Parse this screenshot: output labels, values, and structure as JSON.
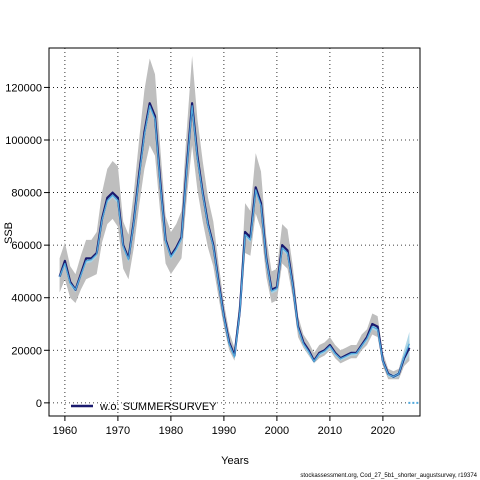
{
  "chart_data": {
    "type": "line",
    "xlabel": "Years",
    "ylabel": "SSB",
    "xlim": [
      1957,
      2027
    ],
    "ylim": [
      -5000,
      135000
    ],
    "x_ticks": [
      1960,
      1970,
      1980,
      1990,
      2000,
      2010,
      2020
    ],
    "y_ticks": [
      0,
      20000,
      40000,
      60000,
      80000,
      100000,
      120000
    ],
    "grid": "dotted",
    "legend_position": "bottom-left",
    "legend": [
      {
        "label": "w.o. SUMMERSURVEY",
        "color": "#1a1a6e"
      }
    ],
    "footer": "stockassessment.org, Cod_27_5b1_shorter_augustsurvey, r19374",
    "colors": {
      "band_gray": "#bebebe",
      "band_lightblue": "#a8d4e6",
      "line_dark": "#1a1a6e",
      "line_light": "#4fa8dc"
    },
    "series": [
      {
        "name": "w.o. SUMMERSURVEY",
        "x": [
          1959,
          1960,
          1961,
          1962,
          1963,
          1964,
          1965,
          1966,
          1967,
          1968,
          1969,
          1970,
          1971,
          1972,
          1973,
          1974,
          1975,
          1976,
          1977,
          1978,
          1979,
          1980,
          1981,
          1982,
          1983,
          1984,
          1985,
          1986,
          1987,
          1988,
          1989,
          1990,
          1991,
          1992,
          1993,
          1994,
          1995,
          1996,
          1997,
          1998,
          1999,
          2000,
          2001,
          2002,
          2003,
          2004,
          2005,
          2006,
          2007,
          2008,
          2009,
          2010,
          2011,
          2012,
          2013,
          2014,
          2015,
          2016,
          2017,
          2018,
          2019,
          2020,
          2021,
          2022,
          2023,
          2024,
          2025
        ],
        "values": [
          48000,
          54000,
          46000,
          43000,
          49000,
          55000,
          55000,
          57000,
          70000,
          78000,
          80000,
          78000,
          60000,
          55000,
          69000,
          87000,
          103000,
          114000,
          109000,
          84000,
          62000,
          56000,
          59000,
          63000,
          90000,
          114000,
          94000,
          80000,
          68000,
          60000,
          46000,
          33000,
          23000,
          18000,
          35000,
          65000,
          63000,
          82000,
          76000,
          55000,
          43000,
          44000,
          60000,
          58000,
          45000,
          29000,
          23000,
          20000,
          16000,
          19000,
          20000,
          22000,
          19000,
          17000,
          18000,
          19000,
          19000,
          22000,
          25000,
          30000,
          29000,
          16000,
          11000,
          10000,
          11000,
          17000,
          21000
        ],
        "lower": [
          42000,
          47000,
          40000,
          38000,
          43000,
          47000,
          48000,
          49000,
          61000,
          68000,
          70000,
          67000,
          51000,
          47000,
          59000,
          75000,
          89000,
          98000,
          94000,
          72000,
          53000,
          49000,
          52000,
          55000,
          78000,
          98000,
          81000,
          69000,
          59000,
          52000,
          40000,
          29000,
          20000,
          16000,
          31000,
          57000,
          56000,
          72000,
          66000,
          48000,
          38000,
          39000,
          53000,
          51000,
          40000,
          25000,
          21000,
          18000,
          15000,
          17000,
          18000,
          20000,
          17000,
          15000,
          16000,
          17000,
          17000,
          20000,
          22000,
          26000,
          25000,
          14000,
          9000,
          9000,
          9000,
          14000,
          16000
        ],
        "upper": [
          55000,
          61000,
          52000,
          49000,
          56000,
          62000,
          62000,
          65000,
          80000,
          89000,
          92000,
          90000,
          69000,
          64000,
          80000,
          100000,
          119000,
          131000,
          125000,
          97000,
          71000,
          65000,
          68000,
          73000,
          104000,
          132000,
          108000,
          92000,
          78000,
          69000,
          53000,
          38000,
          27000,
          21000,
          40000,
          76000,
          73000,
          95000,
          88000,
          63000,
          50000,
          51000,
          68000,
          66000,
          52000,
          33000,
          26000,
          23000,
          19000,
          22000,
          23000,
          25000,
          22000,
          20000,
          21000,
          22000,
          22000,
          26000,
          28000,
          34000,
          33000,
          19000,
          13000,
          12000,
          13000,
          20000,
          24000
        ],
        "alt_values": [
          48000,
          53000,
          45500,
          43000,
          48500,
          54000,
          54500,
          56500,
          69500,
          77000,
          79000,
          77000,
          59500,
          54500,
          68500,
          86000,
          102000,
          113000,
          108000,
          83000,
          61500,
          55500,
          58500,
          62500,
          89000,
          113000,
          93000,
          79500,
          67500,
          59500,
          45500,
          32500,
          22500,
          17500,
          34500,
          64000,
          62000,
          81000,
          75000,
          54500,
          42500,
          43500,
          59000,
          57000,
          44500,
          28500,
          22500,
          19500,
          15800,
          18700,
          19700,
          21600,
          18700,
          16800,
          17700,
          18700,
          18800,
          21700,
          24500,
          29000,
          28000,
          15800,
          10800,
          10000,
          11000,
          17500,
          22500
        ],
        "alt_lower": [
          47000,
          52000,
          44500,
          42000,
          47500,
          53000,
          53500,
          55500,
          68500,
          76000,
          78000,
          76000,
          58500,
          53500,
          67500,
          85000,
          101000,
          112000,
          107000,
          82000,
          60500,
          54500,
          57500,
          61500,
          88000,
          112000,
          92000,
          78500,
          66500,
          58500,
          44500,
          31500,
          21500,
          16500,
          33500,
          63000,
          61000,
          80000,
          74000,
          53500,
          41500,
          42500,
          58000,
          56000,
          43500,
          27500,
          21500,
          18500,
          15000,
          17900,
          18900,
          20800,
          17900,
          16000,
          16900,
          17900,
          18000,
          20900,
          23500,
          28000,
          27000,
          15000,
          10000,
          9200,
          10000,
          15000,
          18000
        ],
        "alt_upper": [
          49000,
          54000,
          46500,
          44000,
          49500,
          55000,
          55500,
          57500,
          70500,
          78000,
          80000,
          78000,
          60500,
          55500,
          69500,
          87000,
          103000,
          114000,
          109000,
          84000,
          62500,
          56500,
          59500,
          63500,
          90000,
          114000,
          94000,
          80500,
          68500,
          60500,
          46500,
          33500,
          23500,
          18500,
          35500,
          65000,
          63000,
          82000,
          76000,
          55500,
          43500,
          44500,
          60000,
          58000,
          45500,
          29500,
          23500,
          20500,
          16600,
          19500,
          20500,
          22400,
          19500,
          17600,
          18500,
          19500,
          19600,
          22500,
          25500,
          30000,
          29000,
          16600,
          11600,
          10800,
          12000,
          20000,
          27000
        ]
      }
    ]
  }
}
